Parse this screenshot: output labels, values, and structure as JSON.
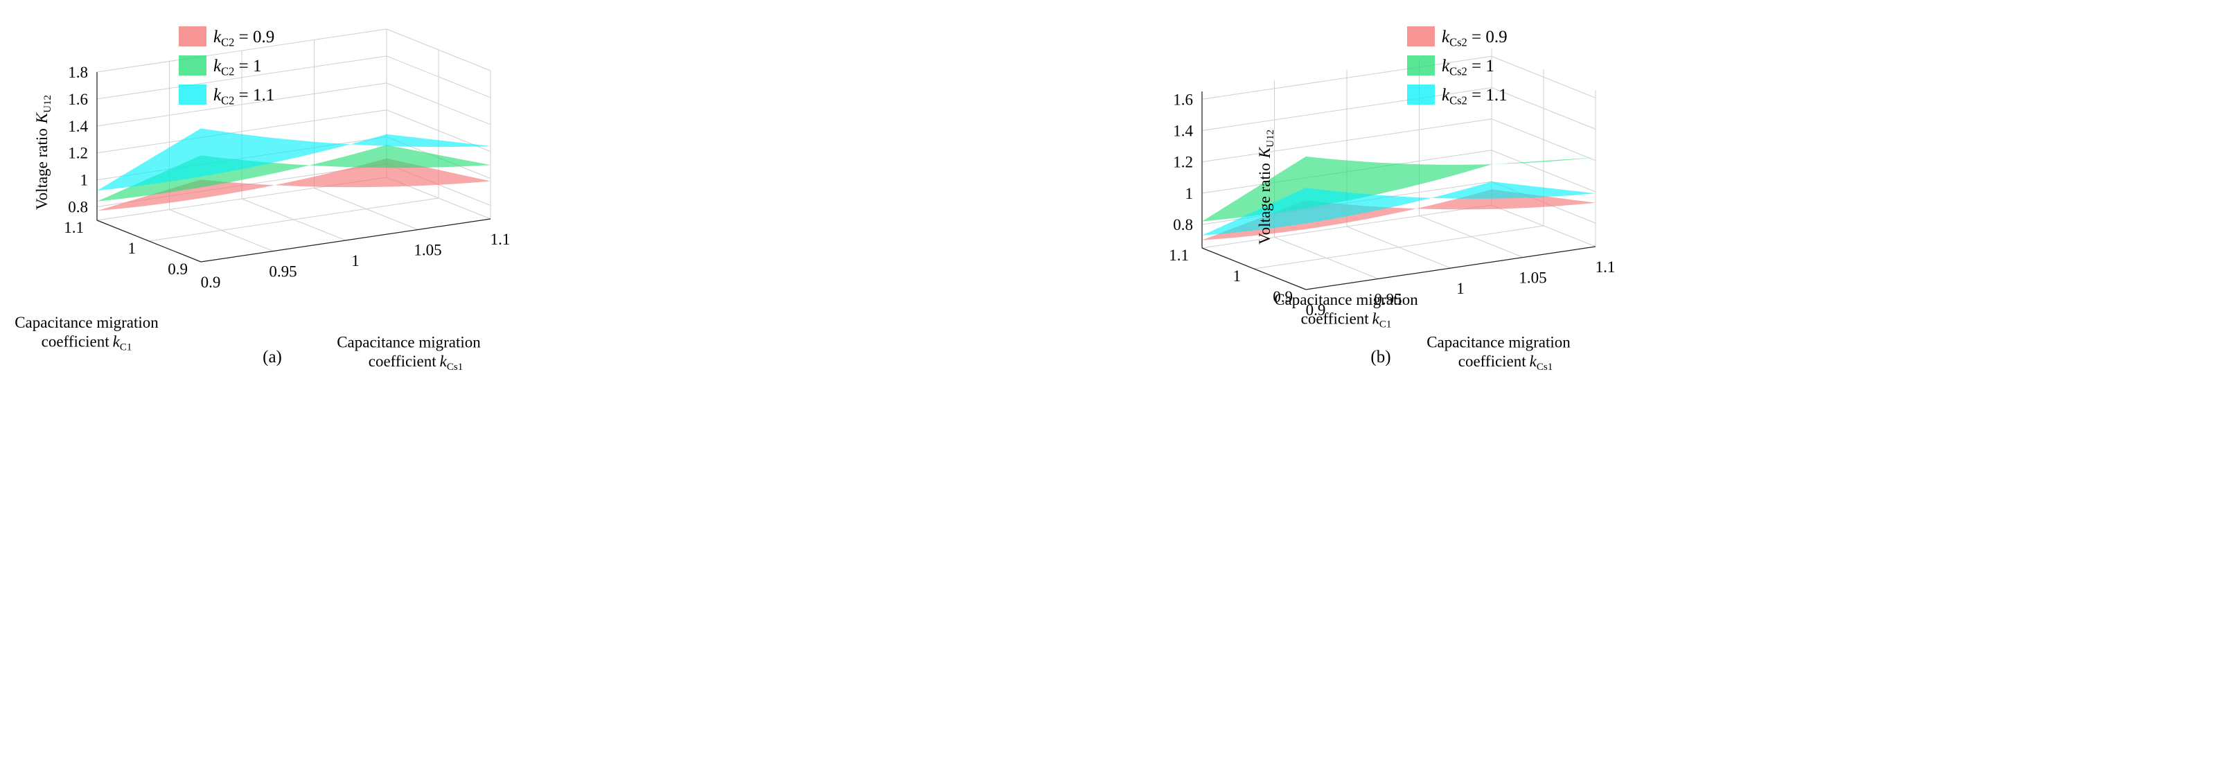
{
  "chart_data": [
    {
      "type": "surface3d",
      "panel_label": "(a)",
      "zlabel": {
        "main": "Voltage ratio",
        "sym": "K",
        "sub": "U12"
      },
      "xlabel": {
        "line1": "Capacitance migration",
        "line2_prefix": "coefficient",
        "sym": "k",
        "sub": "Cs1"
      },
      "ylabel": {
        "line1": "Capacitance migration",
        "line2_prefix": "coefficient",
        "sym": "k",
        "sub": "C1"
      },
      "x_ticks": [
        "0.9",
        "0.95",
        "1",
        "1.05",
        "1.1"
      ],
      "y_ticks": [
        "0.9",
        "1",
        "1.1"
      ],
      "z_ticks": [
        "0.8",
        "1",
        "1.2",
        "1.4",
        "1.6",
        "1.8"
      ],
      "xlim": [
        0.9,
        1.1
      ],
      "ylim": [
        0.9,
        1.1
      ],
      "zlim": [
        0.7,
        1.8
      ],
      "legend_position": "top-center",
      "grid": true,
      "series": [
        {
          "name": "0.9",
          "sym": "k",
          "sub": "C2",
          "label": " = 0.9",
          "color": "#f47272",
          "corners": {
            "x0y0": 1.31,
            "x1y0": 0.98,
            "x0y1": 0.77,
            "x1y1": 0.84
          }
        },
        {
          "name": "1",
          "sym": "k",
          "sub": "C2",
          "label": " = 1",
          "color": "#22dd72",
          "corners": {
            "x0y0": 1.49,
            "x1y0": 1.1,
            "x0y1": 0.84,
            "x1y1": 0.94
          }
        },
        {
          "name": "1.1",
          "sym": "k",
          "sub": "C2",
          "label": " = 1.1",
          "color": "#00f0f8",
          "corners": {
            "x0y0": 1.69,
            "x1y0": 1.24,
            "x0y1": 0.92,
            "x1y1": 1.02
          }
        }
      ]
    },
    {
      "type": "surface3d",
      "panel_label": "(b)",
      "zlabel": {
        "main": "Voltage ratio",
        "sym": "K",
        "sub": "U12"
      },
      "xlabel": {
        "line1": "Capacitance migration",
        "line2_prefix": "coefficient",
        "sym": "k",
        "sub": "Cs1"
      },
      "ylabel": {
        "line1": "Capacitance migration",
        "line2_prefix": "coefficient",
        "sym": "k",
        "sub": "C1"
      },
      "x_ticks": [
        "0.9",
        "0.95",
        "1",
        "1.05",
        "1.1"
      ],
      "y_ticks": [
        "0.9",
        "1",
        "1.1"
      ],
      "z_ticks": [
        "0.8",
        "1",
        "1.2",
        "1.4",
        "1.6"
      ],
      "xlim": [
        0.9,
        1.1
      ],
      "ylim": [
        0.9,
        1.1
      ],
      "zlim": [
        0.65,
        1.65
      ],
      "legend_position": "top-center",
      "grid": true,
      "series": [
        {
          "name": "0.9",
          "sym": "k",
          "sub": "Cs2",
          "label": " = 0.9",
          "color": "#f47272",
          "corners": {
            "x0y0": 1.22,
            "x1y0": 0.93,
            "x0y1": 0.7,
            "x1y1": 0.75
          }
        },
        {
          "name": "1",
          "sym": "k",
          "sub": "Cs2",
          "label": " = 1",
          "color": "#22dd72",
          "corners": {
            "x0y0": 1.5,
            "x1y0": 1.22,
            "x0y1": 0.82,
            "x1y1": 0.91
          }
        },
        {
          "name": "1.1",
          "sym": "k",
          "sub": "Cs2",
          "label": " = 1.1",
          "color": "#00f0f8",
          "corners": {
            "x0y0": 1.3,
            "x1y0": 0.99,
            "x0y1": 0.73,
            "x1y1": 0.8
          }
        }
      ]
    }
  ]
}
